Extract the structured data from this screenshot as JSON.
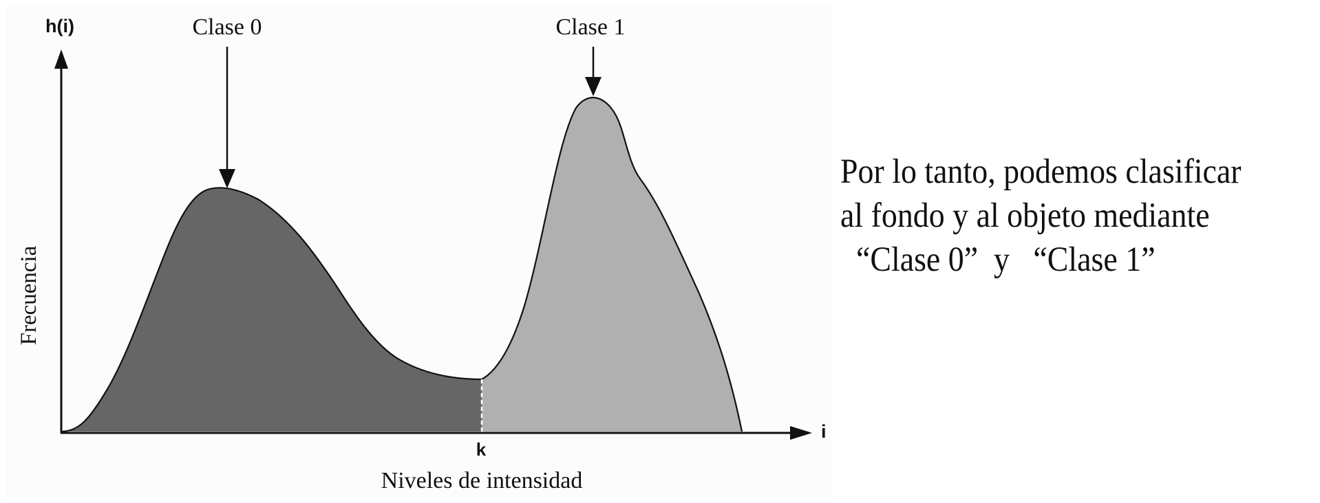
{
  "diagram": {
    "y_axis_symbol": "h(i)",
    "x_axis_symbol": "i",
    "threshold_label": "k",
    "y_axis_title": "Frecuencia",
    "x_axis_title": "Niveles de intensidad",
    "class0_label": "Clase 0",
    "class1_label": "Clase 1",
    "colors": {
      "class0_fill": "#666666",
      "class1_fill": "#b0b0b0",
      "axis": "#111111"
    }
  },
  "side_note": {
    "lines": [
      "Por lo tanto, podemos clasificar",
      "al fondo y al objeto mediante",
      "  “Clase 0”  y   “Clase 1”"
    ]
  }
}
